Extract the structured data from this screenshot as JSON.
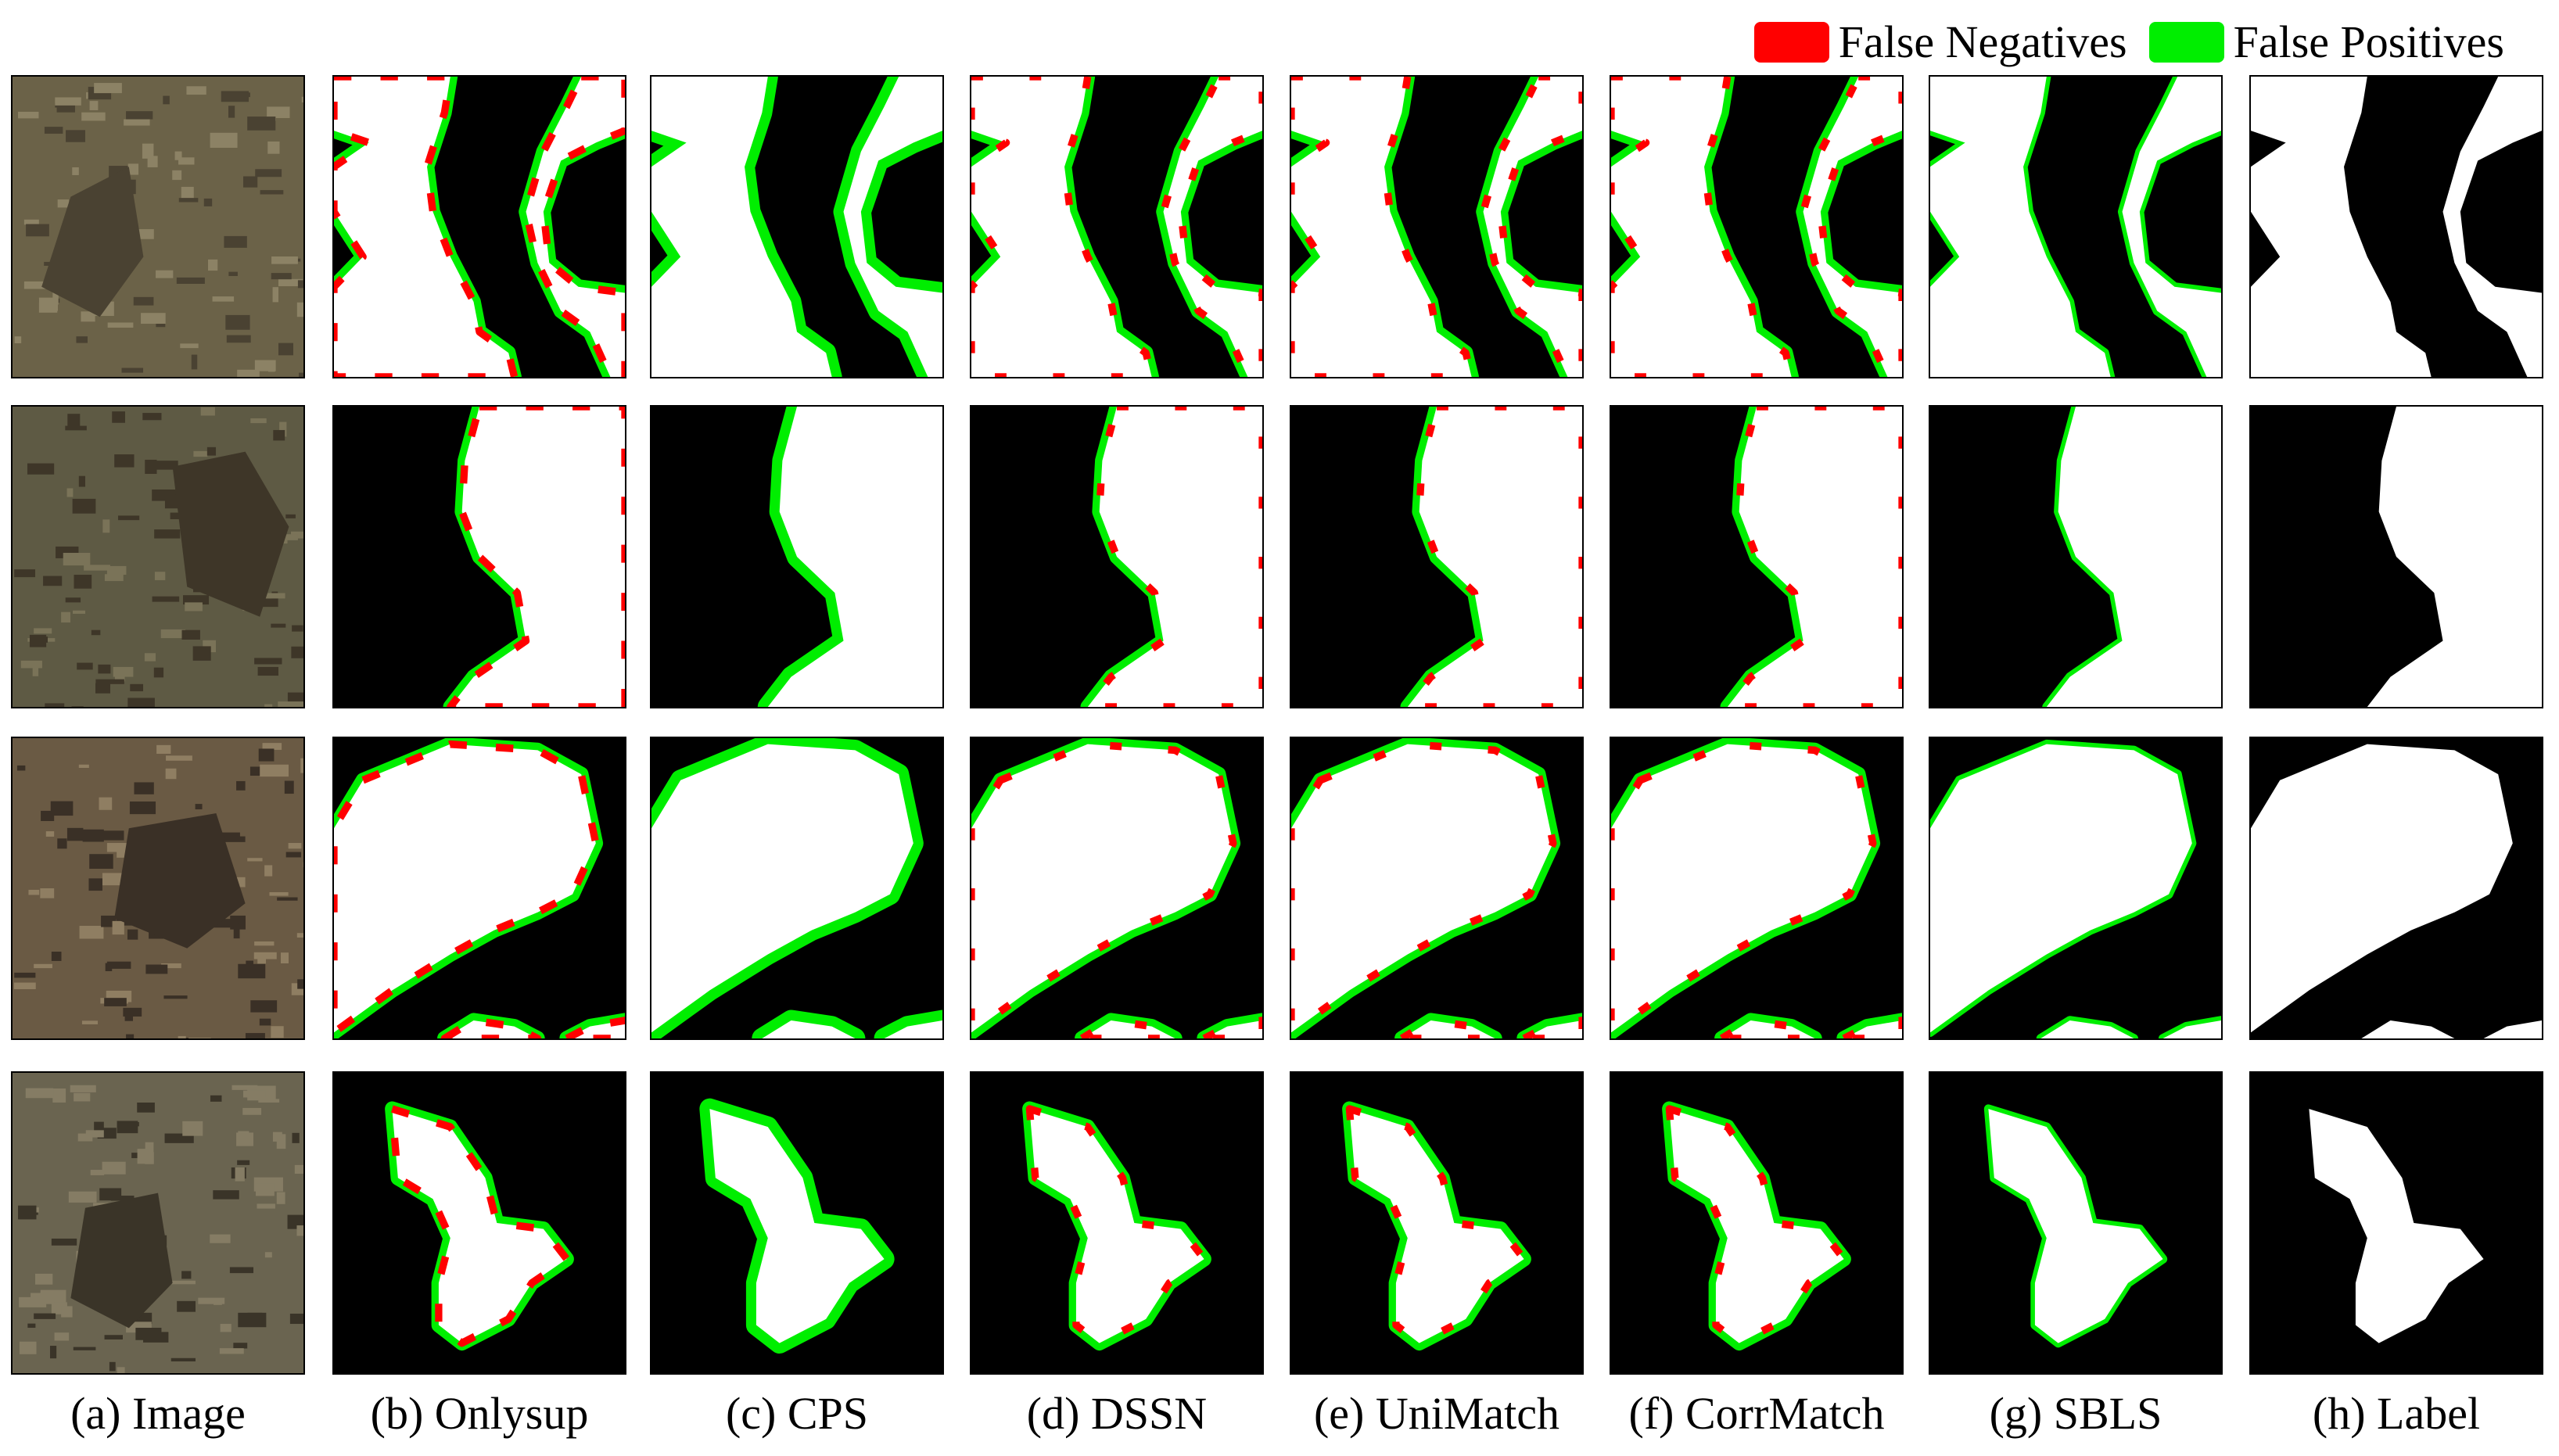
{
  "legend": {
    "false_negatives": {
      "label": "False Negatives",
      "color": "#ff0000"
    },
    "false_positives": {
      "label": "False Positives",
      "color": "#00ee00"
    }
  },
  "colors": {
    "mask_foreground": "#ffffff",
    "mask_background": "#000000",
    "false_negative": "#ff0000",
    "false_positive": "#00ee00",
    "panel_border": "#000000"
  },
  "columns": [
    {
      "caption": "(a) Image",
      "kind": "photo"
    },
    {
      "caption": "(b) Onlysup",
      "kind": "mask"
    },
    {
      "caption": "(c) CPS",
      "kind": "mask"
    },
    {
      "caption": "(d) DSSN",
      "kind": "mask"
    },
    {
      "caption": "(e) UniMatch",
      "kind": "mask"
    },
    {
      "caption": "(f) CorrMatch",
      "kind": "mask"
    },
    {
      "caption": "(g) SBLS",
      "kind": "mask"
    },
    {
      "caption": "(h) Label",
      "kind": "mask"
    }
  ],
  "rows": 4
}
